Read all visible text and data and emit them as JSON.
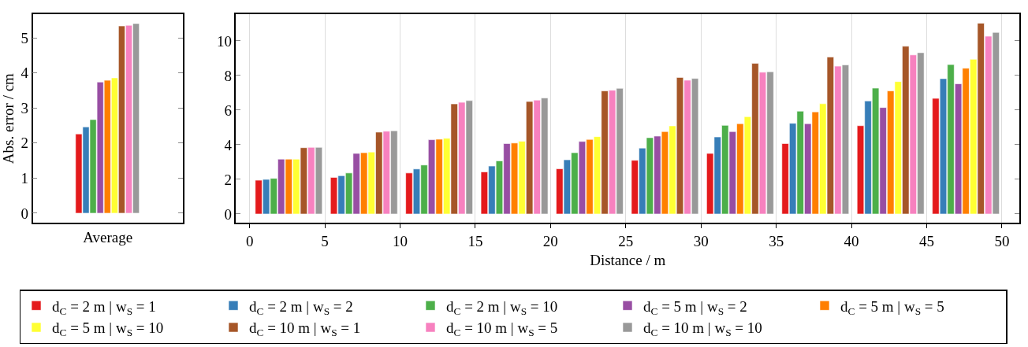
{
  "chart_data": [
    {
      "type": "bar",
      "ylabel": "Abs. error / cm",
      "categories": [
        "Average"
      ],
      "ylim": [
        -0.28,
        5.68
      ],
      "yticks": [
        0,
        1,
        2,
        3,
        4,
        5
      ],
      "grid": false,
      "series": [
        {
          "color": "#e41a1c",
          "values": [
            2.26
          ]
        },
        {
          "color": "#377eb8",
          "values": [
            2.46
          ]
        },
        {
          "color": "#4daf4a",
          "values": [
            2.67
          ]
        },
        {
          "color": "#984ea3",
          "values": [
            3.74
          ]
        },
        {
          "color": "#ff7f00",
          "values": [
            3.79
          ]
        },
        {
          "color": "#ffff33",
          "values": [
            3.86
          ]
        },
        {
          "color": "#a65628",
          "values": [
            5.34
          ]
        },
        {
          "color": "#f781bf",
          "values": [
            5.36
          ]
        },
        {
          "color": "#999999",
          "values": [
            5.41
          ]
        }
      ]
    },
    {
      "type": "bar",
      "xlabel": "Distance / m",
      "xlim": [
        -0.9,
        51.15
      ],
      "xticks": [
        0,
        5,
        10,
        15,
        20,
        25,
        30,
        35,
        40,
        45,
        50
      ],
      "ylim": [
        -0.52,
        11.55
      ],
      "yticks": [
        0,
        2,
        4,
        6,
        8,
        10
      ],
      "grid": "x",
      "legend": "bottom",
      "series": [
        {
          "name": "d$_{C}$ = 2 m | w$_{S}$ = 1",
          "color": "#e41a1c",
          "x": [
            0.6,
            5.6,
            10.6,
            15.6,
            20.6,
            25.6,
            30.6,
            35.6,
            40.6,
            45.6
          ],
          "values": [
            1.95,
            2.11,
            2.37,
            2.43,
            2.61,
            3.1,
            3.5,
            4.07,
            5.1,
            6.68
          ]
        },
        {
          "name": "d$_{C}$ = 2 m | w$_{S}$ = 2",
          "color": "#377eb8",
          "x": [
            1.1,
            6.1,
            11.1,
            16.1,
            21.1,
            26.1,
            31.1,
            36.1,
            41.1,
            46.1
          ],
          "values": [
            2.0,
            2.21,
            2.6,
            2.77,
            3.13,
            3.81,
            4.45,
            5.24,
            6.53,
            7.82
          ]
        },
        {
          "name": "d$_{C}$ = 2 m | w$_{S}$ = 10",
          "color": "#4daf4a",
          "x": [
            1.6,
            6.6,
            11.6,
            16.6,
            21.6,
            26.6,
            31.6,
            36.6,
            41.6,
            46.6
          ],
          "values": [
            2.06,
            2.37,
            2.83,
            3.07,
            3.54,
            4.41,
            5.12,
            5.94,
            7.27,
            8.63
          ]
        },
        {
          "name": "d$_{C}$ = 5 m | w$_{S}$ = 2",
          "color": "#984ea3",
          "x": [
            2.1,
            7.1,
            12.1,
            17.1,
            22.1,
            27.1,
            32.1,
            37.1,
            42.1,
            47.1
          ],
          "values": [
            3.17,
            3.5,
            4.29,
            4.07,
            4.19,
            4.5,
            4.76,
            5.22,
            6.15,
            7.52
          ]
        },
        {
          "name": "d$_{C}$ = 5 m | w$_{S}$ = 5",
          "color": "#ff7f00",
          "x": [
            2.6,
            7.6,
            12.6,
            17.6,
            22.6,
            27.6,
            32.6,
            37.6,
            42.6,
            47.6
          ],
          "values": [
            3.17,
            3.54,
            4.32,
            4.1,
            4.31,
            4.76,
            5.22,
            5.9,
            7.11,
            8.42
          ]
        },
        {
          "name": "d$_{C}$ = 5 m | w$_{S}$ = 10",
          "color": "#ffff33",
          "x": [
            3.1,
            8.1,
            13.1,
            18.1,
            23.1,
            28.1,
            33.1,
            38.1,
            43.1,
            48.1
          ],
          "values": [
            3.17,
            3.58,
            4.37,
            4.2,
            4.47,
            5.09,
            5.62,
            6.37,
            7.65,
            8.94
          ]
        },
        {
          "name": "d$_{C}$ = 10 m | w$_{S}$ = 1",
          "color": "#a65628",
          "x": [
            3.6,
            8.6,
            13.6,
            18.6,
            23.6,
            28.6,
            33.6,
            38.6,
            43.6,
            48.6
          ],
          "values": [
            3.83,
            4.73,
            6.36,
            6.5,
            7.11,
            7.89,
            8.7,
            9.07,
            9.69,
            11.02
          ]
        },
        {
          "name": "d$_{C}$ = 10 m | w$_{S}$ = 5",
          "color": "#f781bf",
          "x": [
            4.1,
            9.1,
            14.1,
            19.1,
            24.1,
            29.1,
            34.1,
            39.1,
            44.1,
            49.1
          ],
          "values": [
            3.85,
            4.78,
            6.45,
            6.58,
            7.15,
            7.73,
            8.19,
            8.54,
            9.19,
            10.27
          ]
        },
        {
          "name": "d$_{C}$ = 10 m | w$_{S}$ = 10",
          "color": "#999999",
          "x": [
            4.6,
            9.6,
            14.6,
            19.6,
            24.6,
            29.6,
            34.6,
            39.6,
            44.6,
            49.6
          ],
          "values": [
            3.85,
            4.81,
            6.55,
            6.7,
            7.26,
            7.83,
            8.22,
            8.61,
            9.32,
            10.49
          ]
        }
      ]
    }
  ]
}
